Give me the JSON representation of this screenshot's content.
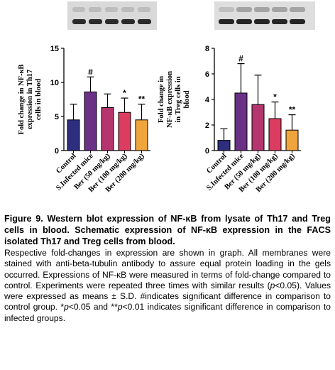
{
  "figure": {
    "caption_title": "Figure 9. Western blot expression of NF-κB from lysate of Th17 and Treg cells in blood. Schematic expression of NF-κB expression in the FACS isolated Th17 and Treg cells from blood.",
    "caption_body_parts": [
      "Respective fold-changes in expression are shown in graph. All membranes were stained with anti-beta-tubulin antibody to assure equal protein loading in the gels occurred. Expressions of NF-κB were measured in terms of fold-change compared to control. Experiments were repeated three times with similar results (",
      "p",
      "<0.05). Values were expressed as means ± S.D. #indicates significant difference in comparison to control group. *",
      "p",
      "<0.05 and **",
      "p",
      "<0.01 indicates significant difference in comparison to infected groups."
    ]
  },
  "chart_data": [
    {
      "type": "bar",
      "ylabel": "Fold change in NF-κB expression in Th17 cells in blood",
      "ylim": [
        0,
        15
      ],
      "yticks": [
        "0",
        "5",
        "10",
        "15"
      ],
      "categories": [
        "Control",
        "S.Infected mice",
        "Ber (50 mg/kg)",
        "Ber (100 mg/kg)",
        "Ber (200 mg/kg)"
      ],
      "values": [
        4.5,
        8.6,
        6.3,
        5.6,
        4.5
      ],
      "errors": [
        2.3,
        2.2,
        2.0,
        2.1,
        2.3
      ],
      "annotations": [
        "",
        "#",
        "",
        "*",
        "**"
      ],
      "colors": [
        "#2d2e7e",
        "#6a3187",
        "#b5366f",
        "#dc3c60",
        "#f0a43c"
      ]
    },
    {
      "type": "bar",
      "ylabel": "Fold change in NF-κB expression in Treg cells in blood",
      "ylim": [
        0,
        8
      ],
      "yticks": [
        "0",
        "2",
        "4",
        "6",
        "8"
      ],
      "categories": [
        "Control",
        "S.Infected mice",
        "Ber (50 mg/kg)",
        "Ber (100 mg/kg)",
        "Ber (200 mg/kg)"
      ],
      "values": [
        0.8,
        4.5,
        3.6,
        2.5,
        1.6
      ],
      "errors": [
        0.9,
        2.3,
        2.3,
        1.3,
        1.2
      ],
      "annotations": [
        "",
        "#",
        "",
        "*",
        "**"
      ],
      "colors": [
        "#2d2e7e",
        "#6a3187",
        "#b5366f",
        "#dc3c60",
        "#f0a43c"
      ]
    }
  ],
  "blots": {
    "left": {
      "band_row1": "#b0b0b0",
      "band_row2": "#2a2a2a"
    },
    "right": {
      "band_row1": "#9a9a9a",
      "band_row2": "#252525"
    }
  }
}
